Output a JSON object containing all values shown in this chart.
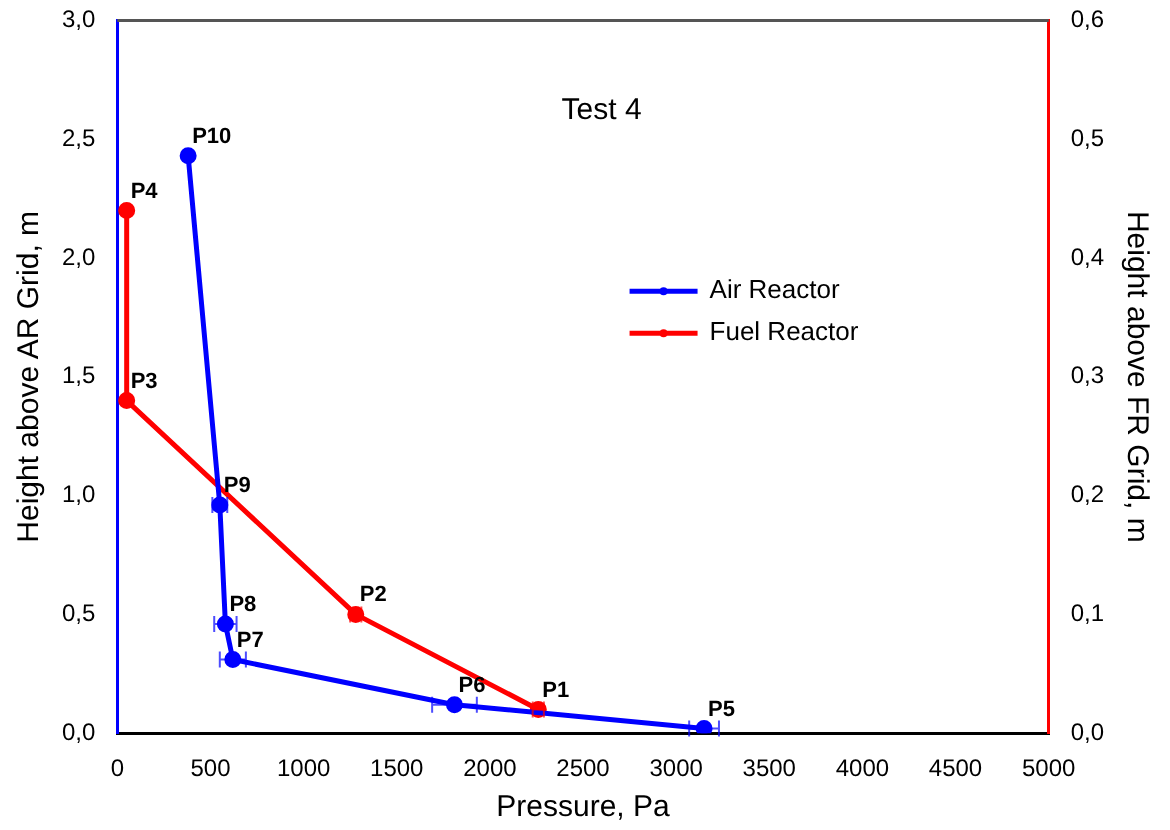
{
  "chart_data": {
    "type": "line",
    "title": "Test 4",
    "xlabel": "Pressure, Pa",
    "ylabel": "Height above AR Grid, m",
    "y2label": "Height above FR Grid, m",
    "xlim": [
      0,
      5000
    ],
    "xticks": [
      0,
      500,
      1000,
      1500,
      2000,
      2500,
      3000,
      3500,
      4000,
      4500,
      5000
    ],
    "ylim": [
      0,
      3
    ],
    "yticks": [
      {
        "value": 0,
        "label": "0,0"
      },
      {
        "value": 0.5,
        "label": "0,5"
      },
      {
        "value": 1,
        "label": "1,0"
      },
      {
        "value": 1.5,
        "label": "1,5"
      },
      {
        "value": 2,
        "label": "2,0"
      },
      {
        "value": 2.5,
        "label": "2,5"
      },
      {
        "value": 3,
        "label": "3,0"
      }
    ],
    "y2lim": [
      0,
      0.6
    ],
    "y2ticks": [
      {
        "value": 0,
        "label": "0,0"
      },
      {
        "value": 0.1,
        "label": "0,1"
      },
      {
        "value": 0.2,
        "label": "0,2"
      },
      {
        "value": 0.3,
        "label": "0,3"
      },
      {
        "value": 0.4,
        "label": "0,4"
      },
      {
        "value": 0.5,
        "label": "0,5"
      },
      {
        "value": 0.6,
        "label": "0,6"
      }
    ],
    "series": [
      {
        "name": "Air Reactor",
        "color": "#0000ff",
        "x": [
          3150,
          1810,
          620,
          580,
          550,
          380
        ],
        "values": [
          0.02,
          0.12,
          0.31,
          0.46,
          0.96,
          2.43
        ],
        "xerrors": [
          80,
          120,
          70,
          60,
          40,
          null
        ]
      },
      {
        "name": "Fuel Reactor",
        "color": "#ff0000",
        "axis": "y2",
        "x": [
          2260,
          1280,
          50,
          50
        ],
        "values": [
          0.02,
          0.1,
          0.28,
          0.44
        ],
        "xerrors": [
          30,
          30,
          null,
          null
        ]
      }
    ],
    "marker": "circle",
    "line_style": "solid",
    "grid": false,
    "legend": "right",
    "annotations": [
      {
        "text": "P1",
        "x": 2260,
        "y": 0.1
      },
      {
        "text": "P2",
        "x": 1280,
        "y": 0.5
      },
      {
        "text": "P3",
        "x": 50,
        "y": 1.4
      },
      {
        "text": "P4",
        "x": 50,
        "y": 2.2
      },
      {
        "text": "P5",
        "x": 3150,
        "y": 0.02
      },
      {
        "text": "P6",
        "x": 1810,
        "y": 0.12
      },
      {
        "text": "P7",
        "x": 620,
        "y": 0.31
      },
      {
        "text": "P8",
        "x": 580,
        "y": 0.46
      },
      {
        "text": "P9",
        "x": 550,
        "y": 0.96
      },
      {
        "text": "P10",
        "x": 380,
        "y": 2.43
      }
    ]
  }
}
